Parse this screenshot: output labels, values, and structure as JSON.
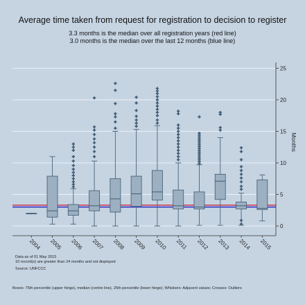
{
  "chart_data": {
    "type": "box",
    "title": "Average time taken from request for registration to decision to register",
    "subtitle_lines": [
      "3.3 months is the median over all registration years (red line)",
      "3.0 months is the median over the last 12 months (blue line)"
    ],
    "ylabel": "Months",
    "ylim": [
      -1,
      25
    ],
    "yticks": [
      0,
      5,
      10,
      15,
      20,
      25
    ],
    "grid": true,
    "overall_median": 3.3,
    "recent_median": 3.0,
    "colors": {
      "box": "#9cb0c2",
      "outline": "#49637a",
      "outlier": "#3e5a73",
      "red_line": "#c8102e",
      "blue_line": "#1f1fbf",
      "grid": "#eaf0f6",
      "background": "#c6d4e2"
    },
    "categories": [
      "2004",
      "2005",
      "2006",
      "2007",
      "2008",
      "2009",
      "2010",
      "2011",
      "2012",
      "2013",
      "2014",
      "2015"
    ],
    "boxes": [
      {
        "year": "2004",
        "low": 2.0,
        "q1": 2.0,
        "median": 2.0,
        "q3": 2.0,
        "high": 2.0,
        "outliers": []
      },
      {
        "year": "2005",
        "low": 0.3,
        "q1": 1.4,
        "median": 2.4,
        "q3": 7.9,
        "high": 11.0,
        "outliers": []
      },
      {
        "year": "2006",
        "low": 0.3,
        "q1": 1.7,
        "median": 2.4,
        "q3": 3.4,
        "high": 5.9,
        "outliers": [
          6.2,
          6.6,
          7.0,
          7.5,
          8.0,
          8.5,
          9.0,
          9.6,
          10.3,
          11.0,
          12.0,
          12.5,
          13.0
        ]
      },
      {
        "year": "2007",
        "low": 0.0,
        "q1": 2.4,
        "median": 3.2,
        "q3": 5.6,
        "high": 10.3,
        "outliers": [
          11.0,
          11.8,
          12.5,
          13.2,
          13.8,
          14.5,
          15.2,
          15.7,
          20.3
        ]
      },
      {
        "year": "2008",
        "low": 0.0,
        "q1": 2.2,
        "median": 4.3,
        "q3": 7.5,
        "high": 15.0,
        "outliers": [
          15.5,
          16.5,
          17.3,
          17.8,
          19.4,
          21.5,
          22.6
        ]
      },
      {
        "year": "2009",
        "low": 0.0,
        "q1": 3.1,
        "median": 5.1,
        "q3": 7.9,
        "high": 15.3,
        "outliers": [
          15.8,
          16.3,
          16.8,
          17.4,
          18.3,
          19.5,
          20.4
        ]
      },
      {
        "year": "2010",
        "low": 0.0,
        "q1": 4.1,
        "median": 5.4,
        "q3": 8.8,
        "high": 15.9,
        "outliers": [
          16.3,
          16.8,
          17.5,
          18.0,
          18.5,
          19.0,
          19.5,
          20.0,
          20.5,
          21.0,
          21.4,
          21.8
        ]
      },
      {
        "year": "2011",
        "low": 0.0,
        "q1": 2.7,
        "median": 3.2,
        "q3": 5.7,
        "high": 10.0,
        "outliers": [
          10.5,
          11.0,
          11.5,
          12.0,
          12.5,
          13.0,
          13.5,
          14.0,
          14.5,
          15.0,
          15.5,
          16.0,
          17.8,
          18.2
        ]
      },
      {
        "year": "2012",
        "low": 0.1,
        "q1": 2.7,
        "median": 3.0,
        "q3": 5.4,
        "high": 9.7,
        "outliers": [
          9.9,
          10.2,
          10.5,
          10.8,
          11.1,
          11.4,
          11.7,
          12.0,
          12.3,
          12.6,
          12.9,
          13.2,
          13.5,
          13.8,
          14.1,
          14.4,
          14.7,
          17.3
        ]
      },
      {
        "year": "2013",
        "low": 0.1,
        "q1": 4.2,
        "median": 7.1,
        "q3": 8.2,
        "high": 14.0,
        "outliers": [
          15.2,
          15.6,
          17.7,
          18.0
        ]
      },
      {
        "year": "2014",
        "low": 0.1,
        "q1": 2.7,
        "median": 3.2,
        "q3": 3.8,
        "high": 5.2,
        "outliers": [
          0.3,
          0.9,
          5.8,
          6.3,
          7.0,
          7.6,
          8.2,
          8.8,
          9.4,
          10.5,
          11.8,
          12.4
        ]
      },
      {
        "year": "2015",
        "low": 0.8,
        "q1": 2.6,
        "median": 2.8,
        "q3": 7.3,
        "high": 8.1,
        "outliers": []
      }
    ]
  },
  "footnotes": [
    "Data as of 01 May 2015",
    "10 record(s) are greater than 24 months and not displayed",
    "Source: UNFCCC"
  ],
  "legend_note": "Boxes: 75th percentile (upper hinge), median (centre line), 25th percentile (lower hinge); Whiskers: Adjacent values; Crosses: Outliers"
}
